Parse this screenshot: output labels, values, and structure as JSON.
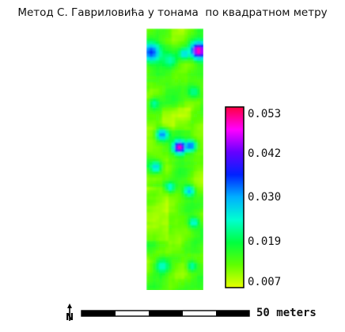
{
  "title": "Метод С. Гавриловића у тонама  по квадратном метру",
  "legend": {
    "labels": [
      "0.053",
      "0.042",
      "0.030",
      "0.019",
      "0.007"
    ],
    "min": 0.007,
    "max": 0.053,
    "gradient_colors": [
      "#ff0040",
      "#ff00ff",
      "#6600ff",
      "#0022ff",
      "#00b0ff",
      "#00ffd0",
      "#00ff40",
      "#60ff00",
      "#e8ff00"
    ]
  },
  "scale_bar": {
    "label": "50 meters"
  },
  "north_arrow": {
    "icon": "north-arrow-icon",
    "letter": "N"
  }
}
